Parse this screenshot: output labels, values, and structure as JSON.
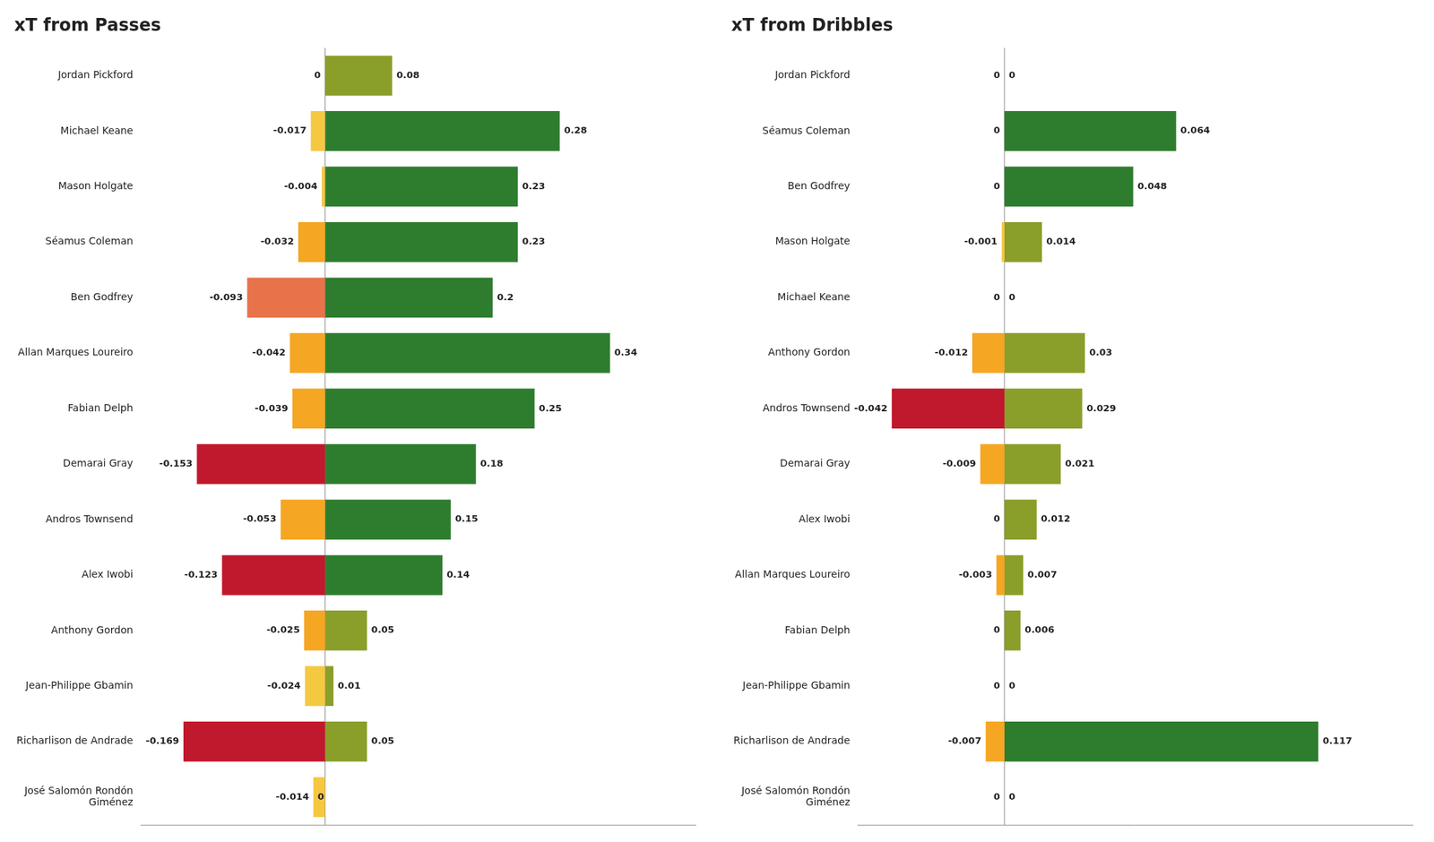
{
  "chart_data": [
    {
      "type": "bar",
      "title": "xT from Passes",
      "orientation": "horizontal",
      "stacked": true,
      "categories": [
        "Jordan Pickford",
        "Michael Keane",
        "Mason Holgate",
        "Séamus Coleman",
        "Ben Godfrey",
        "Allan Marques Loureiro",
        "Fabian Delph",
        "Demarai Gray",
        "Andros Townsend",
        "Alex Iwobi",
        "Anthony Gordon",
        "Jean-Philippe Gbamin",
        "Richarlison de Andrade",
        "José Salomón Rondón\nGiménez"
      ],
      "series": [
        {
          "values": [
            0,
            -0.017,
            -0.004,
            -0.032,
            -0.093,
            -0.042,
            -0.039,
            -0.153,
            -0.053,
            -0.123,
            -0.025,
            -0.024,
            -0.169,
            -0.014
          ],
          "colors": [
            "#f5c842",
            "#f5c842",
            "#f5c842",
            "#f5a623",
            "#e8734a",
            "#f5a623",
            "#f5a623",
            "#c0182c",
            "#f5a623",
            "#c0182c",
            "#f5a623",
            "#f5c842",
            "#c0182c",
            "#f5c842"
          ]
        },
        {
          "values": [
            0.08,
            0.28,
            0.23,
            0.23,
            0.2,
            0.34,
            0.25,
            0.18,
            0.15,
            0.14,
            0.05,
            0.01,
            0.05,
            0
          ],
          "colors": [
            "#8a9e2a",
            "#2e7d2e",
            "#2e7d2e",
            "#2e7d2e",
            "#2e7d2e",
            "#2e7d2e",
            "#2e7d2e",
            "#2e7d2e",
            "#2e7d2e",
            "#2e7d2e",
            "#8a9e2a",
            "#8a9e2a",
            "#8a9e2a",
            "#f5c842"
          ]
        }
      ],
      "xlim": [
        -0.2197,
        0.442
      ],
      "xticks": [],
      "grid": false,
      "data_labels": true,
      "tick_labels": "y"
    },
    {
      "type": "bar",
      "title": "xT from Dribbles",
      "orientation": "horizontal",
      "stacked": true,
      "categories": [
        "Jordan Pickford",
        "Séamus Coleman",
        "Ben Godfrey",
        "Mason Holgate",
        "Michael Keane",
        "Anthony Gordon",
        "Andros Townsend",
        "Demarai Gray",
        "Alex Iwobi",
        "Allan Marques Loureiro",
        "Fabian Delph",
        "Jean-Philippe Gbamin",
        "Richarlison de Andrade",
        "José Salomón Rondón\nGiménez"
      ],
      "series": [
        {
          "values": [
            0,
            0,
            0,
            -0.001,
            0,
            -0.012,
            -0.042,
            -0.009,
            0,
            -0.003,
            0,
            0,
            -0.007,
            0
          ],
          "colors": [
            "#f5c842",
            "#f5c842",
            "#f5c842",
            "#f5c842",
            "#f5c842",
            "#f5a623",
            "#c0182c",
            "#f5a623",
            "#f5c842",
            "#f5a623",
            "#f5c842",
            "#f5c842",
            "#f5a623",
            "#f5c842"
          ]
        },
        {
          "values": [
            0,
            0.064,
            0.048,
            0.014,
            0,
            0.03,
            0.029,
            0.021,
            0.012,
            0.007,
            0.006,
            0,
            0.117,
            0
          ],
          "colors": [
            "#f5c842",
            "#2e7d2e",
            "#2e7d2e",
            "#8a9e2a",
            "#f5c842",
            "#8a9e2a",
            "#8a9e2a",
            "#8a9e2a",
            "#8a9e2a",
            "#8a9e2a",
            "#8a9e2a",
            "#f5c842",
            "#2e7d2e",
            "#f5c842"
          ]
        }
      ],
      "xlim": [
        -0.0546,
        0.1521
      ],
      "xticks": [],
      "grid": false,
      "data_labels": true,
      "tick_labels": "y"
    }
  ]
}
